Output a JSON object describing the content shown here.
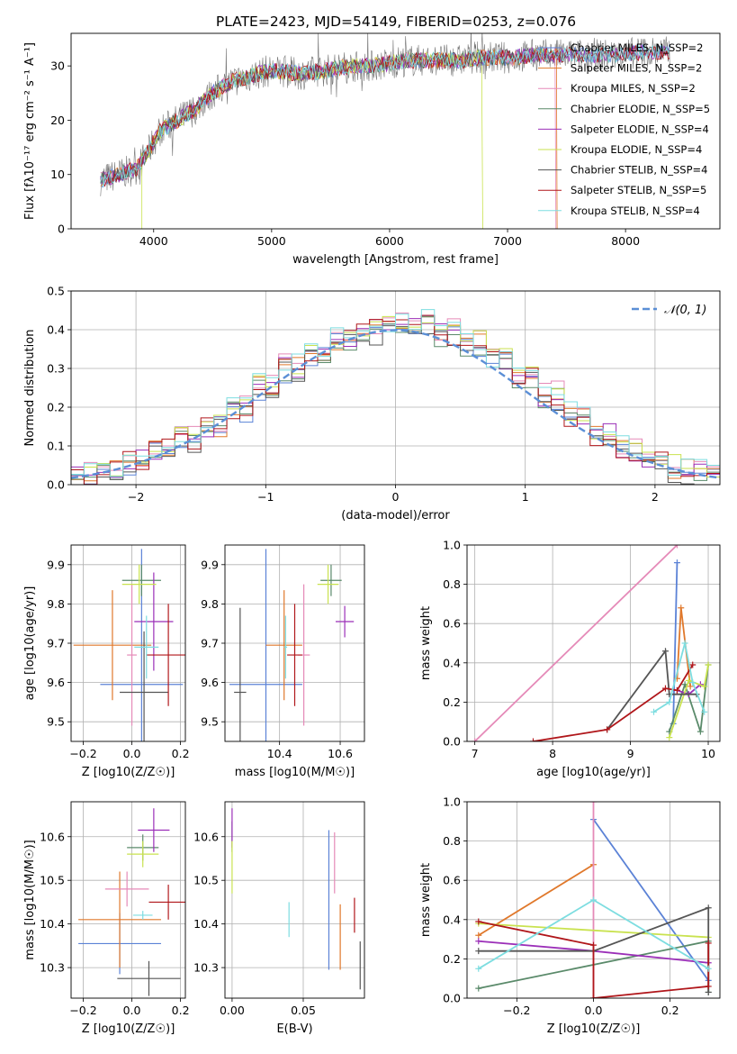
{
  "title": "PLATE=2423, MJD=54149, FIBERID=0253, z=0.076",
  "colors": {
    "Chabrier MILES": "#5b82d6",
    "Salpeter MILES": "#e0782b",
    "Kroupa MILES": "#e58ab8",
    "Chabrier ELODIE": "#5a8a6a",
    "Salpeter ELODIE": "#9b2fb8",
    "Kroupa ELODIE": "#c9e24f",
    "Chabrier STELIB": "#555555",
    "Salpeter STELIB": "#b0161a",
    "Kroupa STELIB": "#7ddde0"
  },
  "chart_data": [
    {
      "type": "line",
      "xlabel": "wavelength [Angstrom, rest frame]",
      "ylabel": "Flux [fλ10⁻¹⁷ erg cm⁻² s⁻¹ A⁻¹]",
      "xlim": [
        3300,
        8800
      ],
      "ylim": [
        0,
        36
      ],
      "xticks": [
        4000,
        5000,
        6000,
        7000,
        8000
      ],
      "yticks": [
        0,
        10,
        20,
        30
      ],
      "grid": false,
      "legend_position": "right",
      "legend": [
        "Chabrier MILES, N_SSP=2",
        "Salpeter MILES, N_SSP=2",
        "Kroupa MILES, N_SSP=2",
        "Chabrier ELODIE, N_SSP=5",
        "Salpeter ELODIE, N_SSP=4",
        "Kroupa ELODIE, N_SSP=4",
        "Chabrier STELIB, N_SSP=4",
        "Salpeter STELIB, N_SSP=5",
        "Kroupa STELIB, N_SSP=4"
      ],
      "x": [
        3550,
        3700,
        3850,
        3950,
        4050,
        4200,
        4350,
        4500,
        4650,
        4800,
        4950,
        5100,
        5250,
        5400,
        5550,
        5700,
        5850,
        6000,
        6150,
        6300,
        6450,
        6600,
        6750,
        6900,
        7050,
        7200,
        7350,
        7500,
        7650,
        7800,
        7950,
        8100,
        8250,
        8400
      ],
      "y": [
        9,
        10,
        11,
        14,
        18,
        20,
        22,
        25,
        27,
        28,
        29,
        29,
        28.5,
        29,
        29.5,
        30,
        30,
        30.5,
        31,
        31,
        31,
        31,
        31.5,
        31.5,
        31.5,
        32,
        32,
        32,
        32,
        32,
        32,
        32.5,
        32.5,
        32.5
      ]
    },
    {
      "type": "area",
      "xlabel": "(data-model)/error",
      "ylabel": "Normed distribution",
      "xlim": [
        -2.5,
        2.5
      ],
      "ylim": [
        0,
        0.5
      ],
      "xticks": [
        -2,
        -1,
        0,
        1,
        2
      ],
      "yticks": [
        0.0,
        0.1,
        0.2,
        0.3,
        0.4,
        0.5
      ],
      "grid": true,
      "legend_position": "top-right",
      "legend": [
        "𝒩(0, 1)"
      ],
      "bin_edges": [
        -2.5,
        -2.3,
        -2.1,
        -1.9,
        -1.7,
        -1.5,
        -1.3,
        -1.1,
        -0.9,
        -0.7,
        -0.5,
        -0.3,
        -0.1,
        0.1,
        0.3,
        0.5,
        0.7,
        0.9,
        1.1,
        1.3,
        1.5,
        1.7,
        1.9,
        2.1,
        2.3,
        2.5
      ],
      "histogram_approx": [
        0.025,
        0.04,
        0.06,
        0.09,
        0.12,
        0.15,
        0.2,
        0.25,
        0.3,
        0.34,
        0.37,
        0.4,
        0.41,
        0.42,
        0.39,
        0.36,
        0.32,
        0.28,
        0.23,
        0.18,
        0.13,
        0.09,
        0.06,
        0.04,
        0.03
      ]
    },
    {
      "type": "scatter",
      "xlabel": "Z [log10(Z/Z☉)]",
      "ylabel": "age  [log10(age/yr)]",
      "xlim": [
        -0.25,
        0.22
      ],
      "ylim": [
        9.45,
        9.95
      ],
      "xticks": [
        -0.2,
        0.0,
        0.2
      ],
      "yticks": [
        9.5,
        9.6,
        9.7,
        9.8,
        9.9
      ],
      "points": [
        {
          "model": "Chabrier MILES",
          "x": 0.04,
          "y": 9.595,
          "xerr": 0.17,
          "yerr": 0.345
        },
        {
          "model": "Salpeter MILES",
          "x": -0.08,
          "y": 9.695,
          "xerr": 0.16,
          "yerr": 0.14
        },
        {
          "model": "Kroupa MILES",
          "x": 0.0,
          "y": 9.67,
          "xerr": 0.02,
          "yerr": 0.18
        },
        {
          "model": "Chabrier ELODIE",
          "x": 0.04,
          "y": 9.86,
          "xerr": 0.08,
          "yerr": 0.04
        },
        {
          "model": "Salpeter ELODIE",
          "x": 0.09,
          "y": 9.755,
          "xerr": 0.08,
          "yerr": 0.125
        },
        {
          "model": "Kroupa ELODIE",
          "x": 0.03,
          "y": 9.85,
          "xerr": 0.07,
          "yerr": 0.05
        },
        {
          "model": "Chabrier STELIB",
          "x": 0.05,
          "y": 9.575,
          "xerr": 0.1,
          "yerr": 0.155
        },
        {
          "model": "Salpeter STELIB",
          "x": 0.15,
          "y": 9.67,
          "xerr": 0.09,
          "yerr": 0.13
        },
        {
          "model": "Kroupa STELIB",
          "x": 0.06,
          "y": 9.69,
          "xerr": 0.05,
          "yerr": 0.08
        }
      ]
    },
    {
      "type": "scatter",
      "xlabel": "mass [log10(M/M☉)]",
      "ylabel": "",
      "xlim": [
        10.22,
        10.68
      ],
      "ylim": [
        9.45,
        9.95
      ],
      "xticks": [
        10.4,
        10.6
      ],
      "yticks": [
        9.5,
        9.6,
        9.7,
        9.8,
        9.9
      ],
      "points": [
        {
          "model": "Chabrier MILES",
          "x": 10.355,
          "y": 9.595,
          "xerr": 0.12,
          "yerr": 0.345
        },
        {
          "model": "Salpeter MILES",
          "x": 10.415,
          "y": 9.695,
          "xerr": 0.06,
          "yerr": 0.14
        },
        {
          "model": "Kroupa MILES",
          "x": 10.48,
          "y": 9.67,
          "xerr": 0.02,
          "yerr": 0.18
        },
        {
          "model": "Chabrier ELODIE",
          "x": 10.57,
          "y": 9.86,
          "xerr": 0.035,
          "yerr": 0.04
        },
        {
          "model": "Salpeter ELODIE",
          "x": 10.615,
          "y": 9.755,
          "xerr": 0.03,
          "yerr": 0.04
        },
        {
          "model": "Kroupa ELODIE",
          "x": 10.56,
          "y": 9.85,
          "xerr": 0.035,
          "yerr": 0.05
        },
        {
          "model": "Chabrier STELIB",
          "x": 10.27,
          "y": 9.575,
          "xerr": 0.02,
          "yerr": 0.215
        },
        {
          "model": "Salpeter STELIB",
          "x": 10.45,
          "y": 9.67,
          "xerr": 0.025,
          "yerr": 0.13
        },
        {
          "model": "Kroupa STELIB",
          "x": 10.42,
          "y": 9.69,
          "xerr": 0.005,
          "yerr": 0.08
        }
      ]
    },
    {
      "type": "line",
      "xlabel": "age  [log10(age/yr)]",
      "ylabel": "mass weight",
      "xlim": [
        6.9,
        10.15
      ],
      "ylim": [
        0,
        1.0
      ],
      "xticks": [
        7,
        8,
        9,
        10
      ],
      "yticks": [
        0.0,
        0.2,
        0.4,
        0.6,
        0.8,
        1.0
      ],
      "grid": true,
      "series": [
        {
          "model": "Chabrier MILES",
          "x": [
            9.55,
            9.6
          ],
          "y": [
            0.09,
            0.91
          ]
        },
        {
          "model": "Salpeter MILES",
          "x": [
            9.6,
            9.65,
            9.77
          ],
          "y": [
            0.32,
            0.68,
            0.28
          ]
        },
        {
          "model": "Kroupa MILES",
          "x": [
            7.0,
            9.6
          ],
          "y": [
            0.0,
            1.0
          ]
        },
        {
          "model": "Chabrier ELODIE",
          "x": [
            9.5,
            9.7,
            9.9,
            10.0
          ],
          "y": [
            0.05,
            0.29,
            0.05,
            0.39
          ]
        },
        {
          "model": "Salpeter ELODIE",
          "x": [
            9.6,
            9.75,
            9.9
          ],
          "y": [
            0.26,
            0.24,
            0.29
          ]
        },
        {
          "model": "Kroupa ELODIE",
          "x": [
            9.5,
            9.75,
            9.95,
            10.0
          ],
          "y": [
            0.02,
            0.31,
            0.28,
            0.39
          ]
        },
        {
          "model": "Chabrier STELIB",
          "x": [
            8.7,
            9.45,
            9.5,
            9.85
          ],
          "y": [
            0.06,
            0.46,
            0.24,
            0.24
          ]
        },
        {
          "model": "Salpeter STELIB",
          "x": [
            7.75,
            8.7,
            9.45,
            9.6,
            9.8
          ],
          "y": [
            0.0,
            0.06,
            0.27,
            0.26,
            0.39
          ]
        },
        {
          "model": "Kroupa STELIB",
          "x": [
            9.3,
            9.5,
            9.7,
            9.8,
            9.95
          ],
          "y": [
            0.15,
            0.2,
            0.5,
            0.3,
            0.15
          ]
        }
      ]
    },
    {
      "type": "scatter",
      "xlabel": "Z [log10(Z/Z☉)]",
      "ylabel": "mass [log10(M/M☉)]",
      "xlim": [
        -0.25,
        0.22
      ],
      "ylim": [
        10.23,
        10.68
      ],
      "xticks": [
        -0.2,
        0.0,
        0.2
      ],
      "yticks": [
        10.3,
        10.4,
        10.5,
        10.6
      ],
      "points": [
        {
          "model": "Chabrier MILES",
          "x": -0.05,
          "y": 10.355,
          "xerr": 0.17,
          "yerr": 0.07
        },
        {
          "model": "Salpeter MILES",
          "x": -0.05,
          "y": 10.41,
          "xerr": 0.17,
          "yerr": 0.11
        },
        {
          "model": "Kroupa MILES",
          "x": -0.02,
          "y": 10.48,
          "xerr": 0.09,
          "yerr": 0.04
        },
        {
          "model": "Chabrier ELODIE",
          "x": 0.045,
          "y": 10.575,
          "xerr": 0.065,
          "yerr": 0.03
        },
        {
          "model": "Salpeter ELODIE",
          "x": 0.09,
          "y": 10.615,
          "xerr": 0.065,
          "yerr": 0.05
        },
        {
          "model": "Kroupa ELODIE",
          "x": 0.045,
          "y": 10.56,
          "xerr": 0.065,
          "yerr": 0.03
        },
        {
          "model": "Chabrier STELIB",
          "x": 0.07,
          "y": 10.275,
          "xerr": 0.13,
          "yerr": 0.04
        },
        {
          "model": "Salpeter STELIB",
          "x": 0.15,
          "y": 10.45,
          "xerr": 0.08,
          "yerr": 0.04
        },
        {
          "model": "Kroupa STELIB",
          "x": 0.045,
          "y": 10.42,
          "xerr": 0.04,
          "yerr": 0.01
        }
      ]
    },
    {
      "type": "scatter",
      "xlabel": "E(B-V)",
      "ylabel": "",
      "xlim": [
        -0.005,
        0.093
      ],
      "ylim": [
        10.23,
        10.68
      ],
      "xticks": [
        0.0,
        0.05
      ],
      "yticks": [
        10.3,
        10.4,
        10.5,
        10.6
      ],
      "points": [
        {
          "model": "Chabrier MILES",
          "x": 0.068,
          "y": 10.455,
          "yerr": 0.16
        },
        {
          "model": "Salpeter MILES",
          "x": 0.076,
          "y": 10.37,
          "yerr": 0.075
        },
        {
          "model": "Kroupa MILES",
          "x": 0.072,
          "y": 10.54,
          "yerr": 0.07
        },
        {
          "model": "Chabrier ELODIE",
          "x": 0.0,
          "y": 10.6,
          "yerr": 0.035
        },
        {
          "model": "Salpeter ELODIE",
          "x": 0.0,
          "y": 10.62,
          "yerr": 0.045
        },
        {
          "model": "Kroupa ELODIE",
          "x": 0.0,
          "y": 10.53,
          "yerr": 0.06
        },
        {
          "model": "Chabrier STELIB",
          "x": 0.09,
          "y": 10.305,
          "yerr": 0.055
        },
        {
          "model": "Salpeter STELIB",
          "x": 0.086,
          "y": 10.42,
          "yerr": 0.04
        },
        {
          "model": "Kroupa STELIB",
          "x": 0.04,
          "y": 10.41,
          "yerr": 0.04
        }
      ]
    },
    {
      "type": "line",
      "xlabel": "Z [log10(Z/Z☉)]",
      "ylabel": "mass weight",
      "xlim": [
        -0.33,
        0.33
      ],
      "ylim": [
        0,
        1.0
      ],
      "xticks": [
        -0.2,
        0.0,
        0.2
      ],
      "yticks": [
        0.0,
        0.2,
        0.4,
        0.6,
        0.8,
        1.0
      ],
      "grid": true,
      "series": [
        {
          "model": "Chabrier MILES",
          "x": [
            0.0,
            0.3
          ],
          "y": [
            0.91,
            0.09
          ]
        },
        {
          "model": "Salpeter MILES",
          "x": [
            -0.3,
            0.0
          ],
          "y": [
            0.32,
            0.68
          ]
        },
        {
          "model": "Kroupa MILES",
          "x": [
            0.0,
            0.0
          ],
          "y": [
            0.0,
            1.0
          ]
        },
        {
          "model": "Chabrier ELODIE",
          "x": [
            -0.3,
            0.3,
            0.3
          ],
          "y": [
            0.05,
            0.29,
            0.03
          ]
        },
        {
          "model": "Salpeter ELODIE",
          "x": [
            -0.3,
            0.0,
            0.3
          ],
          "y": [
            0.29,
            0.24,
            0.18
          ]
        },
        {
          "model": "Kroupa ELODIE",
          "x": [
            -0.3,
            0.3
          ],
          "y": [
            0.38,
            0.31
          ]
        },
        {
          "model": "Chabrier STELIB",
          "x": [
            -0.3,
            0.0,
            0.3,
            0.3
          ],
          "y": [
            0.24,
            0.24,
            0.46,
            0.03
          ]
        },
        {
          "model": "Salpeter STELIB",
          "x": [
            -0.3,
            0.0,
            0.0,
            0.3,
            0.3
          ],
          "y": [
            0.39,
            0.27,
            0.0,
            0.06,
            0.28
          ]
        },
        {
          "model": "Kroupa STELIB",
          "x": [
            -0.3,
            0.0,
            0.3
          ],
          "y": [
            0.15,
            0.5,
            0.15
          ]
        }
      ]
    }
  ]
}
